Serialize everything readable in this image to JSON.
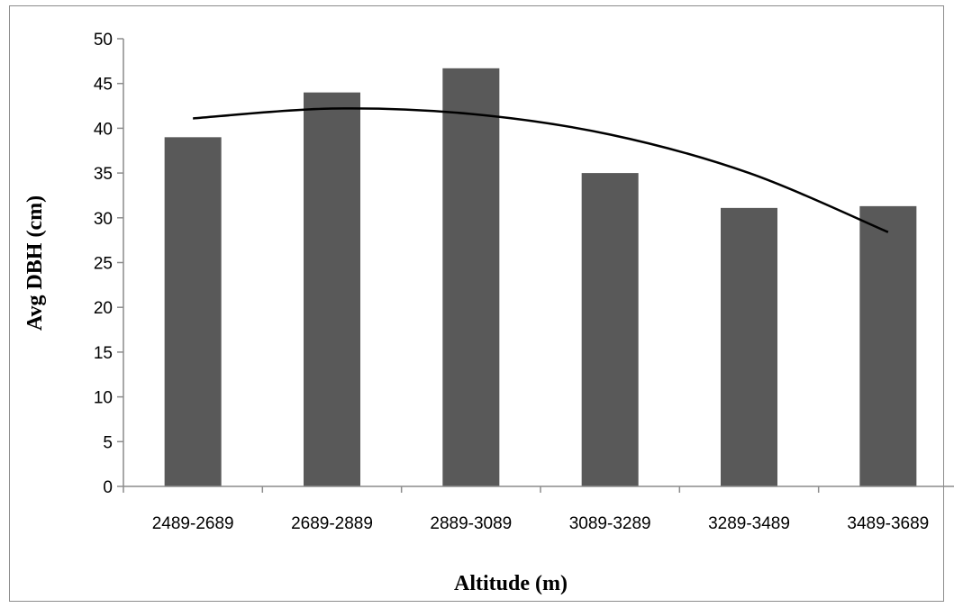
{
  "chart_data": {
    "type": "bar",
    "title": "",
    "xlabel": "Altitude (m)",
    "ylabel": "Avg DBH (cm)",
    "categories": [
      "2489-2689",
      "2689-2889",
      "2889-3089",
      "3089-3289",
      "3289-3489",
      "3489-3689"
    ],
    "values": [
      39.0,
      44.0,
      46.7,
      35.0,
      31.1,
      31.3
    ],
    "ylim": [
      0,
      50
    ],
    "yticks": [
      "0",
      "5",
      "10",
      "15",
      "20",
      "25",
      "30",
      "35",
      "40",
      "45",
      "50"
    ],
    "grid": false,
    "legend": "none",
    "bar_color": "#595959",
    "trendline": {
      "type": "polynomial",
      "values": [
        41.1,
        42.2,
        41.6,
        39.3,
        35.0,
        28.4
      ],
      "color": "#000000"
    }
  }
}
